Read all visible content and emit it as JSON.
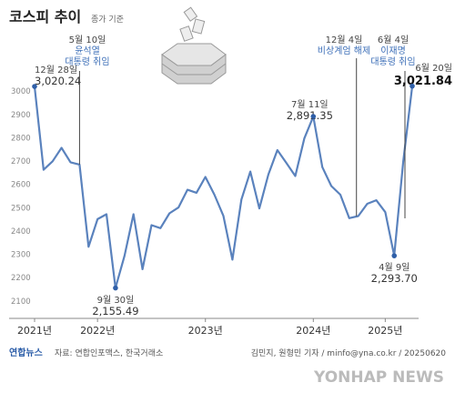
{
  "chart_data": {
    "type": "line",
    "title": "코스피 추이",
    "subtitle": "종가 기준",
    "x": [
      "2021-12",
      "2022-01",
      "2022-02",
      "2022-03",
      "2022-04",
      "2022-05",
      "2022-06",
      "2022-07",
      "2022-08",
      "2022-09",
      "2022-10",
      "2022-11",
      "2022-12",
      "2023-01",
      "2023-02",
      "2023-03",
      "2023-04",
      "2023-05",
      "2023-06",
      "2023-07",
      "2023-08",
      "2023-09",
      "2023-10",
      "2023-11",
      "2023-12",
      "2024-01",
      "2024-02",
      "2024-03",
      "2024-04",
      "2024-05",
      "2024-06",
      "2024-07",
      "2024-08",
      "2024-09",
      "2024-10",
      "2024-11",
      "2024-12",
      "2025-01",
      "2025-02",
      "2025-03",
      "2025-04",
      "2025-05",
      "2025-06"
    ],
    "values": [
      3020.24,
      2663,
      2699,
      2757,
      2695,
      2685,
      2332,
      2451,
      2472,
      2155.49,
      2293,
      2472,
      2236,
      2425,
      2412,
      2476,
      2501,
      2577,
      2564,
      2632,
      2556,
      2465,
      2277,
      2535,
      2655,
      2497,
      2642,
      2747,
      2692,
      2636,
      2797,
      2891.35,
      2674,
      2593,
      2556,
      2455,
      2464,
      2517,
      2532,
      2481,
      2293.7,
      2697,
      3021.84
    ],
    "value_labels": [
      "3,020.24",
      null,
      null,
      null,
      null,
      null,
      null,
      null,
      null,
      "2,155.49",
      null,
      null,
      null,
      null,
      null,
      null,
      null,
      null,
      null,
      null,
      null,
      null,
      null,
      null,
      null,
      null,
      null,
      null,
      null,
      null,
      null,
      "2,891.35",
      null,
      null,
      null,
      null,
      null,
      null,
      null,
      null,
      "2,293.70",
      null,
      "3,021.84"
    ],
    "color": "#5a82bd",
    "ylim": [
      2060,
      3040
    ],
    "yticks": [
      2100,
      2200,
      2300,
      2400,
      2500,
      2600,
      2700,
      2800,
      2900,
      3000
    ],
    "xticks": [
      {
        "value": "2021-12",
        "label": "2021년"
      },
      {
        "value": "2022-07",
        "label": "2022년"
      },
      {
        "value": "2023-07",
        "label": "2023년"
      },
      {
        "value": "2024-07",
        "label": "2024년"
      },
      {
        "value": "2025-03",
        "label": "2025년"
      }
    ],
    "grid": false,
    "annotations": [
      {
        "x": "2021-12",
        "text": "12월 28일"
      },
      {
        "x": "2022-05",
        "text": "5월 10일",
        "note": [
          "윤석열",
          "대통령 취임"
        ]
      },
      {
        "x": "2022-09",
        "text": "9월 30일"
      },
      {
        "x": "2024-07",
        "text": "7월 11일"
      },
      {
        "x": "2024-12",
        "text": "12월 4일",
        "note": [
          "비상계엄 해제"
        ]
      },
      {
        "x": "2025-06",
        "text": "6월 4일",
        "note": [
          "이재명",
          "대통령 취임"
        ]
      },
      {
        "x": "2025-04",
        "text": "4월 9일"
      },
      {
        "x": "2025-06",
        "text": "6월 20일"
      }
    ],
    "source": "자료: 연합인포맥스, 한국거래소",
    "credit": "김민지, 원형민 기자 / minfo@yna.co.kr / 20250620",
    "logo": "연합뉴스",
    "watermark": "YONHAP NEWS"
  }
}
